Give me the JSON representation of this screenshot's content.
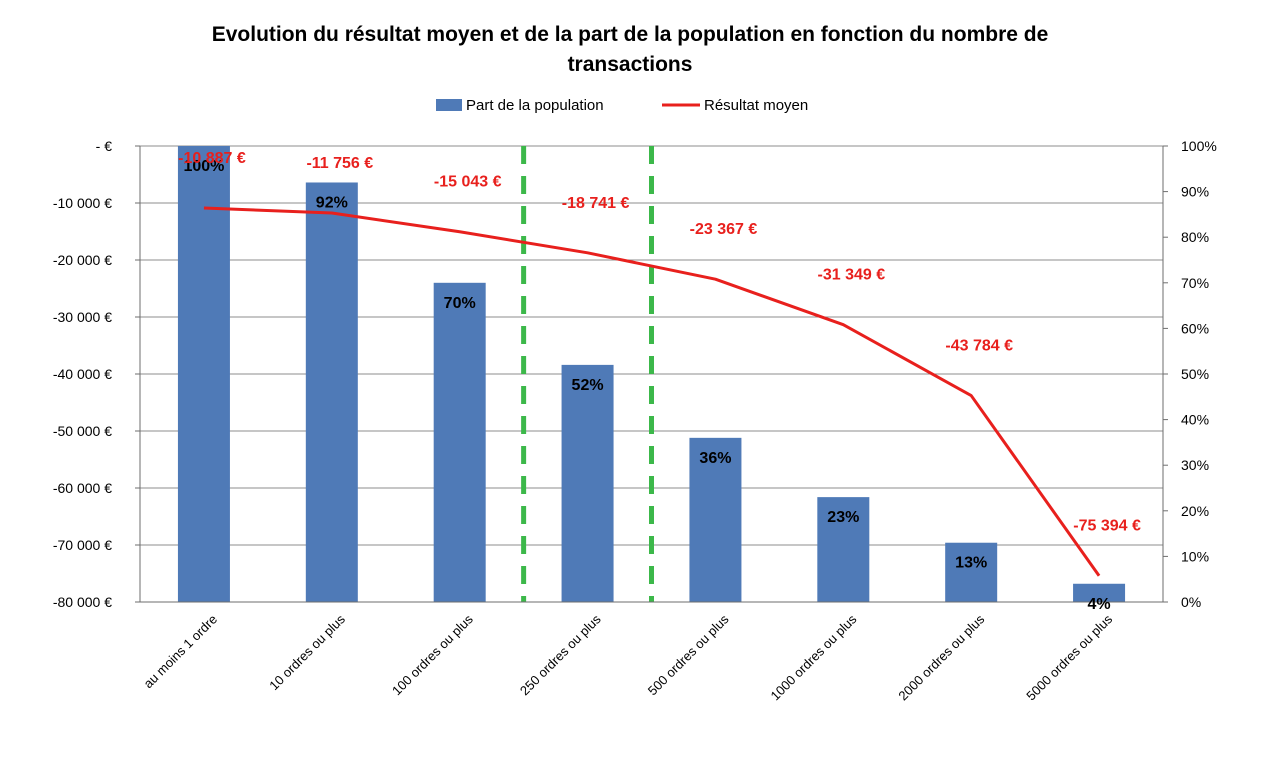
{
  "chart_data": {
    "type": "bar",
    "title_line1": "Evolution du résultat moyen et de la part de la population en fonction du nombre de",
    "title_line2": "transactions",
    "categories": [
      "au moins 1 ordre",
      "10 ordres ou plus",
      "100 ordres ou plus",
      "250 ordres ou plus",
      "500 ordres ou plus",
      "1000 ordres ou plus",
      "2000 ordres ou plus",
      "5000 ordres ou plus"
    ],
    "series": [
      {
        "name": "Part de la population",
        "type": "bar",
        "axis": "right",
        "color": "#4f7ab7",
        "values": [
          100,
          92,
          70,
          52,
          36,
          23,
          13,
          4
        ],
        "labels": [
          "100%",
          "92%",
          "70%",
          "52%",
          "36%",
          "23%",
          "13%",
          "4%"
        ]
      },
      {
        "name": "Résultat moyen",
        "type": "line",
        "axis": "left",
        "color": "#e8201d",
        "values": [
          -10887,
          -11756,
          -15043,
          -18741,
          -23367,
          -31349,
          -43784,
          -75394
        ],
        "labels": [
          "-10 887 €",
          "-11 756 €",
          "-15 043 €",
          "-18 741 €",
          "-23 367 €",
          "-31 349 €",
          "-43 784 €",
          "-75 394 €"
        ]
      }
    ],
    "y_left": {
      "ylim": [
        -80000,
        0
      ],
      "ticks": [
        0,
        -10000,
        -20000,
        -30000,
        -40000,
        -50000,
        -60000,
        -70000,
        -80000
      ],
      "tick_labels": [
        "-  €",
        "-10 000 €",
        "-20 000 €",
        "-30 000 €",
        "-40 000 €",
        "-50 000 €",
        "-60 000 €",
        "-70 000 €",
        "-80 000 €"
      ]
    },
    "y_right": {
      "ylim": [
        0,
        100
      ],
      "ticks": [
        100,
        90,
        80,
        70,
        60,
        50,
        40,
        30,
        20,
        10,
        0
      ],
      "tick_labels": [
        "100%",
        "90%",
        "80%",
        "70%",
        "60%",
        "50%",
        "40%",
        "30%",
        "20%",
        "10%",
        "0%"
      ]
    },
    "separators_between_categories": [
      [
        3,
        4
      ],
      [
        4,
        5
      ]
    ],
    "separator_color": "#3cb84a",
    "grid": true,
    "legend_position": "top"
  }
}
